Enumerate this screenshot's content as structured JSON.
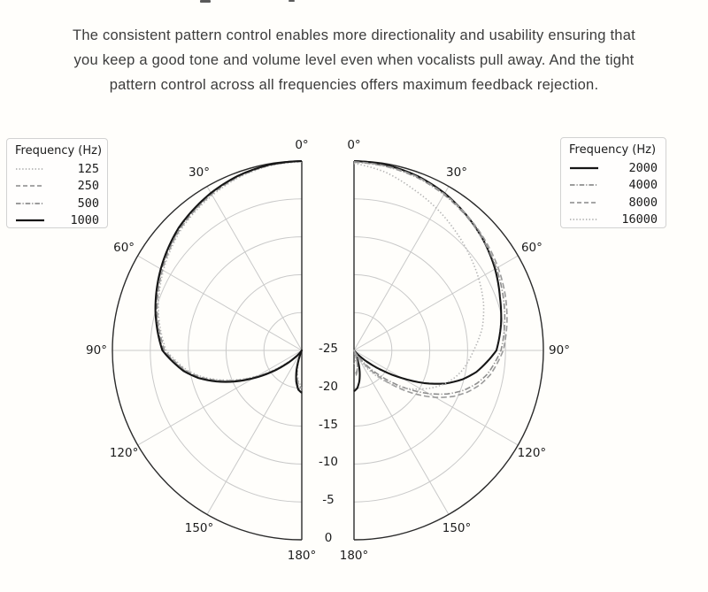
{
  "intro": {
    "lines": [
      "The consistent pattern control enables more directionality and usability ensuring that",
      "you keep a good tone and volume level even when vocalists pull away. And the tight",
      "pattern control across all frequencies offers maximum feedback rejection."
    ]
  },
  "colors": {
    "solid_line": "#161616",
    "dashdot_line": "#8e8e8e",
    "dashed_line": "#9a9a9a",
    "dotted_line": "#b4b4b4",
    "grid": "#c9c9c9",
    "spine": "#2b2b2b",
    "label_text": "#1c1c1c"
  },
  "chart_data": {
    "type": "line",
    "subtype": "polar-pattern-half-pair",
    "units": "dB",
    "r_axis": {
      "min": -25,
      "max": 0,
      "ticks": [
        -25,
        -20,
        -15,
        -10,
        -5,
        0
      ],
      "tick_labels": [
        "-25",
        "-20",
        "-15",
        "-10",
        "-5",
        "0"
      ]
    },
    "angle_ticks_deg": [
      0,
      30,
      60,
      90,
      120,
      150,
      180
    ],
    "angle_tick_labels": [
      "0°",
      "30°",
      "60°",
      "90°",
      "120°",
      "150°",
      "180°"
    ],
    "left": {
      "side": "left",
      "legend_title": "Frequency (Hz)",
      "angles_deg": [
        0,
        10,
        20,
        30,
        45,
        60,
        75,
        90,
        100,
        105,
        110,
        115,
        120,
        125,
        130,
        135,
        140,
        145,
        155,
        160,
        165,
        170,
        175,
        180
      ],
      "series": [
        {
          "name": "125",
          "style": "dotted",
          "color": "#b4b4b4",
          "values_db": [
            -0.1,
            -0.25,
            -0.7,
            -1.35,
            -2.45,
            -3.9,
            -5.4,
            -7.1,
            -9.7,
            -11.45,
            -13.6,
            -15.9,
            -18.3,
            -20.5,
            -22.5,
            -24.0,
            -25,
            -25,
            -25,
            -24.8,
            -23.2,
            -21.7,
            -20.7,
            -20.3
          ]
        },
        {
          "name": "250",
          "style": "dashed",
          "color": "#9a9a9a",
          "values_db": [
            -0.05,
            -0.2,
            -0.6,
            -1.2,
            -2.3,
            -3.75,
            -5.25,
            -6.9,
            -9.5,
            -11.25,
            -13.4,
            -15.7,
            -18.1,
            -20.3,
            -22.3,
            -23.8,
            -24.8,
            -25,
            -25,
            -24.6,
            -22.9,
            -21.4,
            -20.4,
            -20.0
          ]
        },
        {
          "name": "500",
          "style": "dashdot",
          "color": "#8e8e8e",
          "values_db": [
            0,
            -0.15,
            -0.5,
            -1.1,
            -2.2,
            -3.6,
            -5.1,
            -6.75,
            -9.35,
            -11.1,
            -13.2,
            -15.5,
            -17.9,
            -20.1,
            -22.1,
            -23.6,
            -24.6,
            -25,
            -25,
            -24.4,
            -22.6,
            -21.1,
            -20.1,
            -19.7
          ]
        },
        {
          "name": "1000",
          "style": "solid",
          "color": "#161616",
          "values_db": [
            0,
            -0.12,
            -0.45,
            -1.0,
            -2.05,
            -3.5,
            -5.0,
            -6.6,
            -9.2,
            -10.9,
            -13.0,
            -15.3,
            -17.7,
            -19.9,
            -21.9,
            -23.4,
            -24.4,
            -25,
            -25,
            -24.2,
            -22.3,
            -20.8,
            -19.8,
            -19.4
          ]
        }
      ]
    },
    "right": {
      "side": "right",
      "legend_title": "Frequency (Hz)",
      "angles_deg": [
        0,
        10,
        20,
        30,
        40,
        50,
        60,
        70,
        80,
        90,
        100,
        105,
        110,
        115,
        120,
        125,
        130,
        135,
        140,
        145,
        150,
        155,
        160,
        165,
        170,
        175,
        180
      ],
      "series": [
        {
          "name": "2000",
          "style": "solid",
          "color": "#161616",
          "values_db": [
            0,
            -0.15,
            -0.5,
            -1.05,
            -1.8,
            -2.6,
            -3.5,
            -4.5,
            -5.3,
            -6.2,
            -8.6,
            -10.2,
            -12.2,
            -14.8,
            -17.7,
            -20.3,
            -22.4,
            -23.9,
            -25,
            -25,
            -25,
            -24.6,
            -23.4,
            -22.1,
            -20.9,
            -20.0,
            -19.6
          ]
        },
        {
          "name": "4000",
          "style": "dashdot",
          "color": "#8e8e8e",
          "values_db": [
            -0.15,
            -0.35,
            -0.7,
            -1.25,
            -1.9,
            -2.6,
            -3.3,
            -4.05,
            -4.8,
            -5.6,
            -7.1,
            -8.2,
            -9.6,
            -11.4,
            -13.6,
            -16.0,
            -18.4,
            -20.6,
            -22.5,
            -24.2,
            -25,
            -25,
            -24.5,
            -23.4,
            -22.5,
            -22.0,
            -21.8
          ]
        },
        {
          "name": "8000",
          "style": "dashed",
          "color": "#9a9a9a",
          "values_db": [
            -0.1,
            -0.3,
            -0.6,
            -1.15,
            -1.75,
            -2.4,
            -3.05,
            -3.75,
            -4.5,
            -5.3,
            -6.7,
            -7.7,
            -9.0,
            -10.6,
            -12.6,
            -14.9,
            -17.3,
            -19.6,
            -21.7,
            -23.5,
            -24.8,
            -25,
            -24.7,
            -23.5,
            -22.4,
            -21.7,
            -21.4
          ]
        },
        {
          "name": "16000",
          "style": "dotted",
          "color": "#b4b4b4",
          "values_db": [
            -0.3,
            -1.1,
            -2.3,
            -3.3,
            -4.3,
            -5.2,
            -6.0,
            -6.8,
            -7.8,
            -9.2,
            -10.4,
            -11.2,
            -12.2,
            -13.4,
            -14.8,
            -16.2,
            -17.7,
            -19.3,
            -20.9,
            -22.4,
            -23.6,
            -24.6,
            -25,
            -24.6,
            -23.9,
            -23.4,
            -23.2
          ]
        }
      ]
    }
  }
}
